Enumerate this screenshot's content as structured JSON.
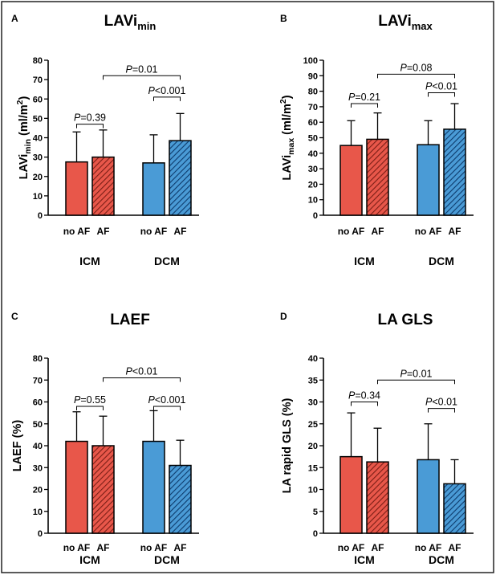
{
  "colors": {
    "icm": "#E8574A",
    "dcm": "#4A9BD6",
    "hatch_icm": "#7A1E16",
    "hatch_dcm": "#0D3A6B"
  },
  "chart_data": [
    {
      "type": "bar",
      "panel_letter": "A",
      "title": "LAVi",
      "title_sub": "min",
      "ylabel": "LAVi",
      "ylabel_sub": "min",
      "ylabel_rest": " (ml/m",
      "ylabel_sup": "2",
      "ylabel_end": ")",
      "ylim": [
        0,
        80
      ],
      "yticks": [
        0,
        10,
        20,
        30,
        40,
        50,
        60,
        70,
        80
      ],
      "groups": [
        "ICM",
        "DCM"
      ],
      "categories": [
        "no AF",
        "AF",
        "no AF",
        "AF"
      ],
      "values": [
        27.5,
        30,
        27,
        38.5
      ],
      "errors": [
        43,
        44,
        41.5,
        52.5
      ],
      "comparisons": [
        {
          "prefix": "P",
          "text": "=0.39",
          "from": 0,
          "to": 1,
          "y": 47
        },
        {
          "prefix": "P",
          "text": "<0.001",
          "from": 2,
          "to": 3,
          "y": 61
        },
        {
          "prefix": "P",
          "text": "=0.01",
          "from": 1,
          "to": 3,
          "y": 72
        }
      ]
    },
    {
      "type": "bar",
      "panel_letter": "B",
      "title": "LAVi",
      "title_sub": "max",
      "ylabel": "LAVi",
      "ylabel_sub": "max",
      "ylabel_rest": " (ml/m",
      "ylabel_sup": "2",
      "ylabel_end": ")",
      "ylim": [
        0,
        100
      ],
      "yticks": [
        0,
        10,
        20,
        30,
        40,
        50,
        60,
        70,
        80,
        90,
        100
      ],
      "groups": [
        "ICM",
        "DCM"
      ],
      "categories": [
        "no AF",
        "AF",
        "no AF",
        "AF"
      ],
      "values": [
        45,
        49,
        45.5,
        55.5
      ],
      "errors": [
        61,
        66,
        61,
        72
      ],
      "comparisons": [
        {
          "prefix": "P",
          "text": "=0.21",
          "from": 0,
          "to": 1,
          "y": 72
        },
        {
          "prefix": "P",
          "text": "<0.01",
          "from": 2,
          "to": 3,
          "y": 79
        },
        {
          "prefix": "P",
          "text": "=0.08",
          "from": 1,
          "to": 3,
          "y": 91
        }
      ]
    },
    {
      "type": "bar",
      "panel_letter": "C",
      "title": "LAEF",
      "title_sub": "",
      "ylabel": "LAEF (%)",
      "ylabel_sub": "",
      "ylabel_rest": "",
      "ylabel_sup": "",
      "ylabel_end": "",
      "ylim": [
        0,
        80
      ],
      "yticks": [
        0,
        10,
        20,
        30,
        40,
        50,
        60,
        70,
        80
      ],
      "groups": [
        "ICM",
        "DCM"
      ],
      "categories": [
        "no AF",
        "AF",
        "no AF",
        "AF"
      ],
      "values": [
        42,
        40,
        42,
        31
      ],
      "errors": [
        55.5,
        53.5,
        56,
        42.5
      ],
      "comparisons": [
        {
          "prefix": "P",
          "text": "=0.55",
          "from": 0,
          "to": 1,
          "y": 58
        },
        {
          "prefix": "P",
          "text": "<0.001",
          "from": 2,
          "to": 3,
          "y": 58
        },
        {
          "prefix": "P",
          "text": "<0.01",
          "from": 1,
          "to": 3,
          "y": 71
        }
      ]
    },
    {
      "type": "bar",
      "panel_letter": "D",
      "title": "LA GLS",
      "title_sub": "",
      "ylabel": "LA rapid GLS (%)",
      "ylabel_sub": "",
      "ylabel_rest": "",
      "ylabel_sup": "",
      "ylabel_end": "",
      "ylim": [
        0,
        40
      ],
      "yticks": [
        0,
        5,
        10,
        15,
        20,
        25,
        30,
        35,
        40
      ],
      "groups": [
        "ICM",
        "DCM"
      ],
      "categories": [
        "no AF",
        "AF",
        "no AF",
        "AF"
      ],
      "values": [
        17.5,
        16.3,
        16.8,
        11.3
      ],
      "errors": [
        27.5,
        24,
        25,
        16.8
      ],
      "comparisons": [
        {
          "prefix": "P",
          "text": "=0.34",
          "from": 0,
          "to": 1,
          "y": 30
        },
        {
          "prefix": "P",
          "text": "<0.01",
          "from": 2,
          "to": 3,
          "y": 28.5
        },
        {
          "prefix": "P",
          "text": "=0.01",
          "from": 1,
          "to": 3,
          "y": 35
        }
      ]
    }
  ]
}
